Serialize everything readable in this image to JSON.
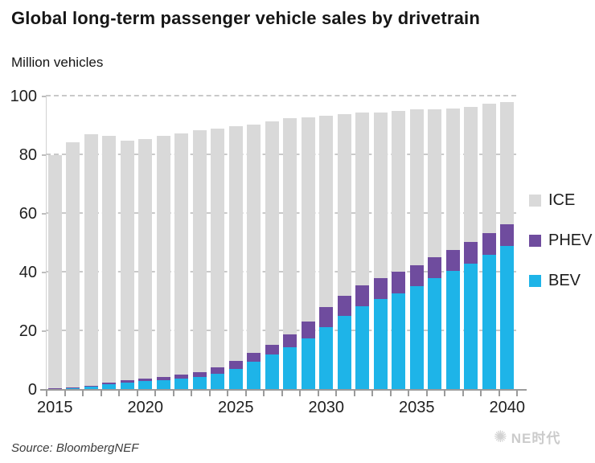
{
  "title": "Global long-term passenger vehicle sales by drivetrain",
  "unit_label": "Million vehicles",
  "source": "Source: BloombergNEF",
  "watermark": {
    "icon": "sparkle-logo-icon",
    "text": "NE时代"
  },
  "colors": {
    "bev": "#1EB4E8",
    "phev": "#6F4C9E",
    "ice": "#D9D9D9",
    "axis": "#9B9B9B",
    "grid": "#C9C9C9",
    "text": "#1D1D1D"
  },
  "legend": [
    {
      "label": "ICE",
      "color": "#D9D9D9"
    },
    {
      "label": "PHEV",
      "color": "#6F4C9E"
    },
    {
      "label": "BEV",
      "color": "#1EB4E8"
    }
  ],
  "chart_data": {
    "type": "bar",
    "stacked": true,
    "title": "Global long-term passenger vehicle sales by drivetrain",
    "xlabel": "",
    "ylabel": "Million vehicles",
    "ylim": [
      0,
      100
    ],
    "yticks": [
      0,
      20,
      40,
      60,
      80,
      100
    ],
    "xticks_labeled": [
      2015,
      2020,
      2025,
      2030,
      2035,
      2040
    ],
    "grid": "horizontal-dashed",
    "legend_position": "right",
    "categories": [
      2015,
      2016,
      2017,
      2018,
      2019,
      2020,
      2021,
      2022,
      2023,
      2024,
      2025,
      2026,
      2027,
      2028,
      2029,
      2030,
      2031,
      2032,
      2033,
      2034,
      2035,
      2036,
      2037,
      2038,
      2039,
      2040
    ],
    "series": [
      {
        "name": "BEV",
        "color": "#1EB4E8",
        "values": [
          0.4,
          0.6,
          1.0,
          1.8,
          2.4,
          2.9,
          3.4,
          3.9,
          4.4,
          5.4,
          7.0,
          9.5,
          12.0,
          14.5,
          17.5,
          21.5,
          25.3,
          28.5,
          31.0,
          33.0,
          35.3,
          38.0,
          40.5,
          43.0,
          46.0,
          49.0
        ]
      },
      {
        "name": "PHEV",
        "color": "#6F4C9E",
        "values": [
          0.2,
          0.3,
          0.4,
          0.6,
          0.8,
          0.9,
          1.0,
          1.2,
          1.5,
          2.2,
          2.8,
          3.2,
          3.3,
          4.4,
          5.7,
          6.6,
          6.7,
          7.0,
          7.0,
          7.2,
          7.2,
          7.3,
          7.3,
          7.3,
          7.3,
          7.5
        ]
      },
      {
        "name": "ICE",
        "color": "#D9D9D9",
        "values": [
          79.4,
          83.6,
          85.6,
          84.1,
          81.8,
          81.7,
          82.1,
          82.4,
          82.6,
          81.4,
          80.2,
          77.8,
          76.2,
          73.6,
          69.8,
          65.4,
          62.0,
          59.0,
          56.5,
          54.8,
          53.0,
          50.2,
          48.2,
          46.2,
          44.2,
          41.5
        ]
      }
    ]
  }
}
